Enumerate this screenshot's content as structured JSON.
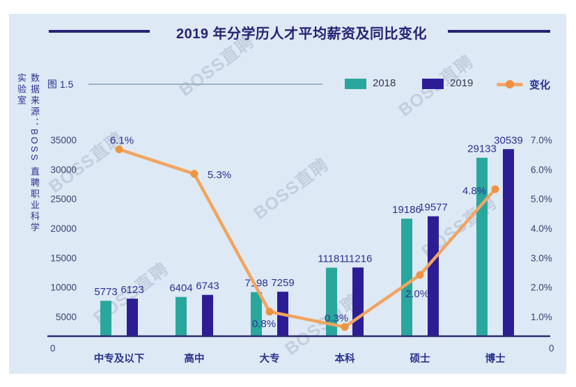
{
  "page": {
    "background": "#ffffff"
  },
  "panel": {
    "background": "#dde9f4"
  },
  "title": "2019 年分学历人才平均薪资及同比变化",
  "figure_label": "图 1.5",
  "source_vertical": "数据来源：BOSS 直聘职业科学实验室",
  "watermark": {
    "text": "BOSS直聘"
  },
  "legend": [
    {
      "label": "2018",
      "color": "#2aa79d",
      "type": "square"
    },
    {
      "label": "2019",
      "color": "#2c1d95",
      "type": "square"
    },
    {
      "label": "变化",
      "color": "#f2a66a",
      "type": "line"
    }
  ],
  "colors": {
    "bar_2018": "#2aa79d",
    "bar_2019": "#2c1d95",
    "line_change": "#f2a45f",
    "marker_change": "#ee9440",
    "axis_line": "#2c2c6e",
    "tick_text": "#3a4375",
    "value_text": "#2e3192",
    "category_text": "#2b3190",
    "title_text": "#262275"
  },
  "chart_data": {
    "type": "bar",
    "subtype": "grouped-bars-with-line",
    "title": "2019 年分学历人才平均薪资及同比变化",
    "categories": [
      "中专及以下",
      "高中",
      "大专",
      "本科",
      "硕士",
      "博士"
    ],
    "series": [
      {
        "name": "2018",
        "type": "bar",
        "values": [
          5773,
          6404,
          7198,
          11181,
          19186,
          29133
        ]
      },
      {
        "name": "2019",
        "type": "bar",
        "values": [
          6123,
          6743,
          7259,
          11216,
          19577,
          30539
        ]
      },
      {
        "name": "变化",
        "type": "line",
        "values_pct": [
          6.1,
          5.3,
          0.8,
          0.3,
          2.0,
          4.8
        ],
        "point_labels": [
          "6.1%",
          "5.3%",
          "0.8%",
          "0.3%",
          "2.0%",
          "4.8%"
        ]
      }
    ],
    "left_axis": {
      "ticks": [
        "35000",
        "30000",
        "25000",
        "20000",
        "15000",
        "10000",
        "5000"
      ],
      "zero_label": "0",
      "min": 0,
      "max": 35000
    },
    "right_axis": {
      "ticks": [
        "7.0%",
        "6.0%",
        "5.0%",
        "4.0%",
        "3.0%",
        "2.0%",
        "1.0%"
      ],
      "zero_label": "0",
      "min": 0,
      "max": 7.0
    },
    "grid": false,
    "legend_position": "top"
  }
}
